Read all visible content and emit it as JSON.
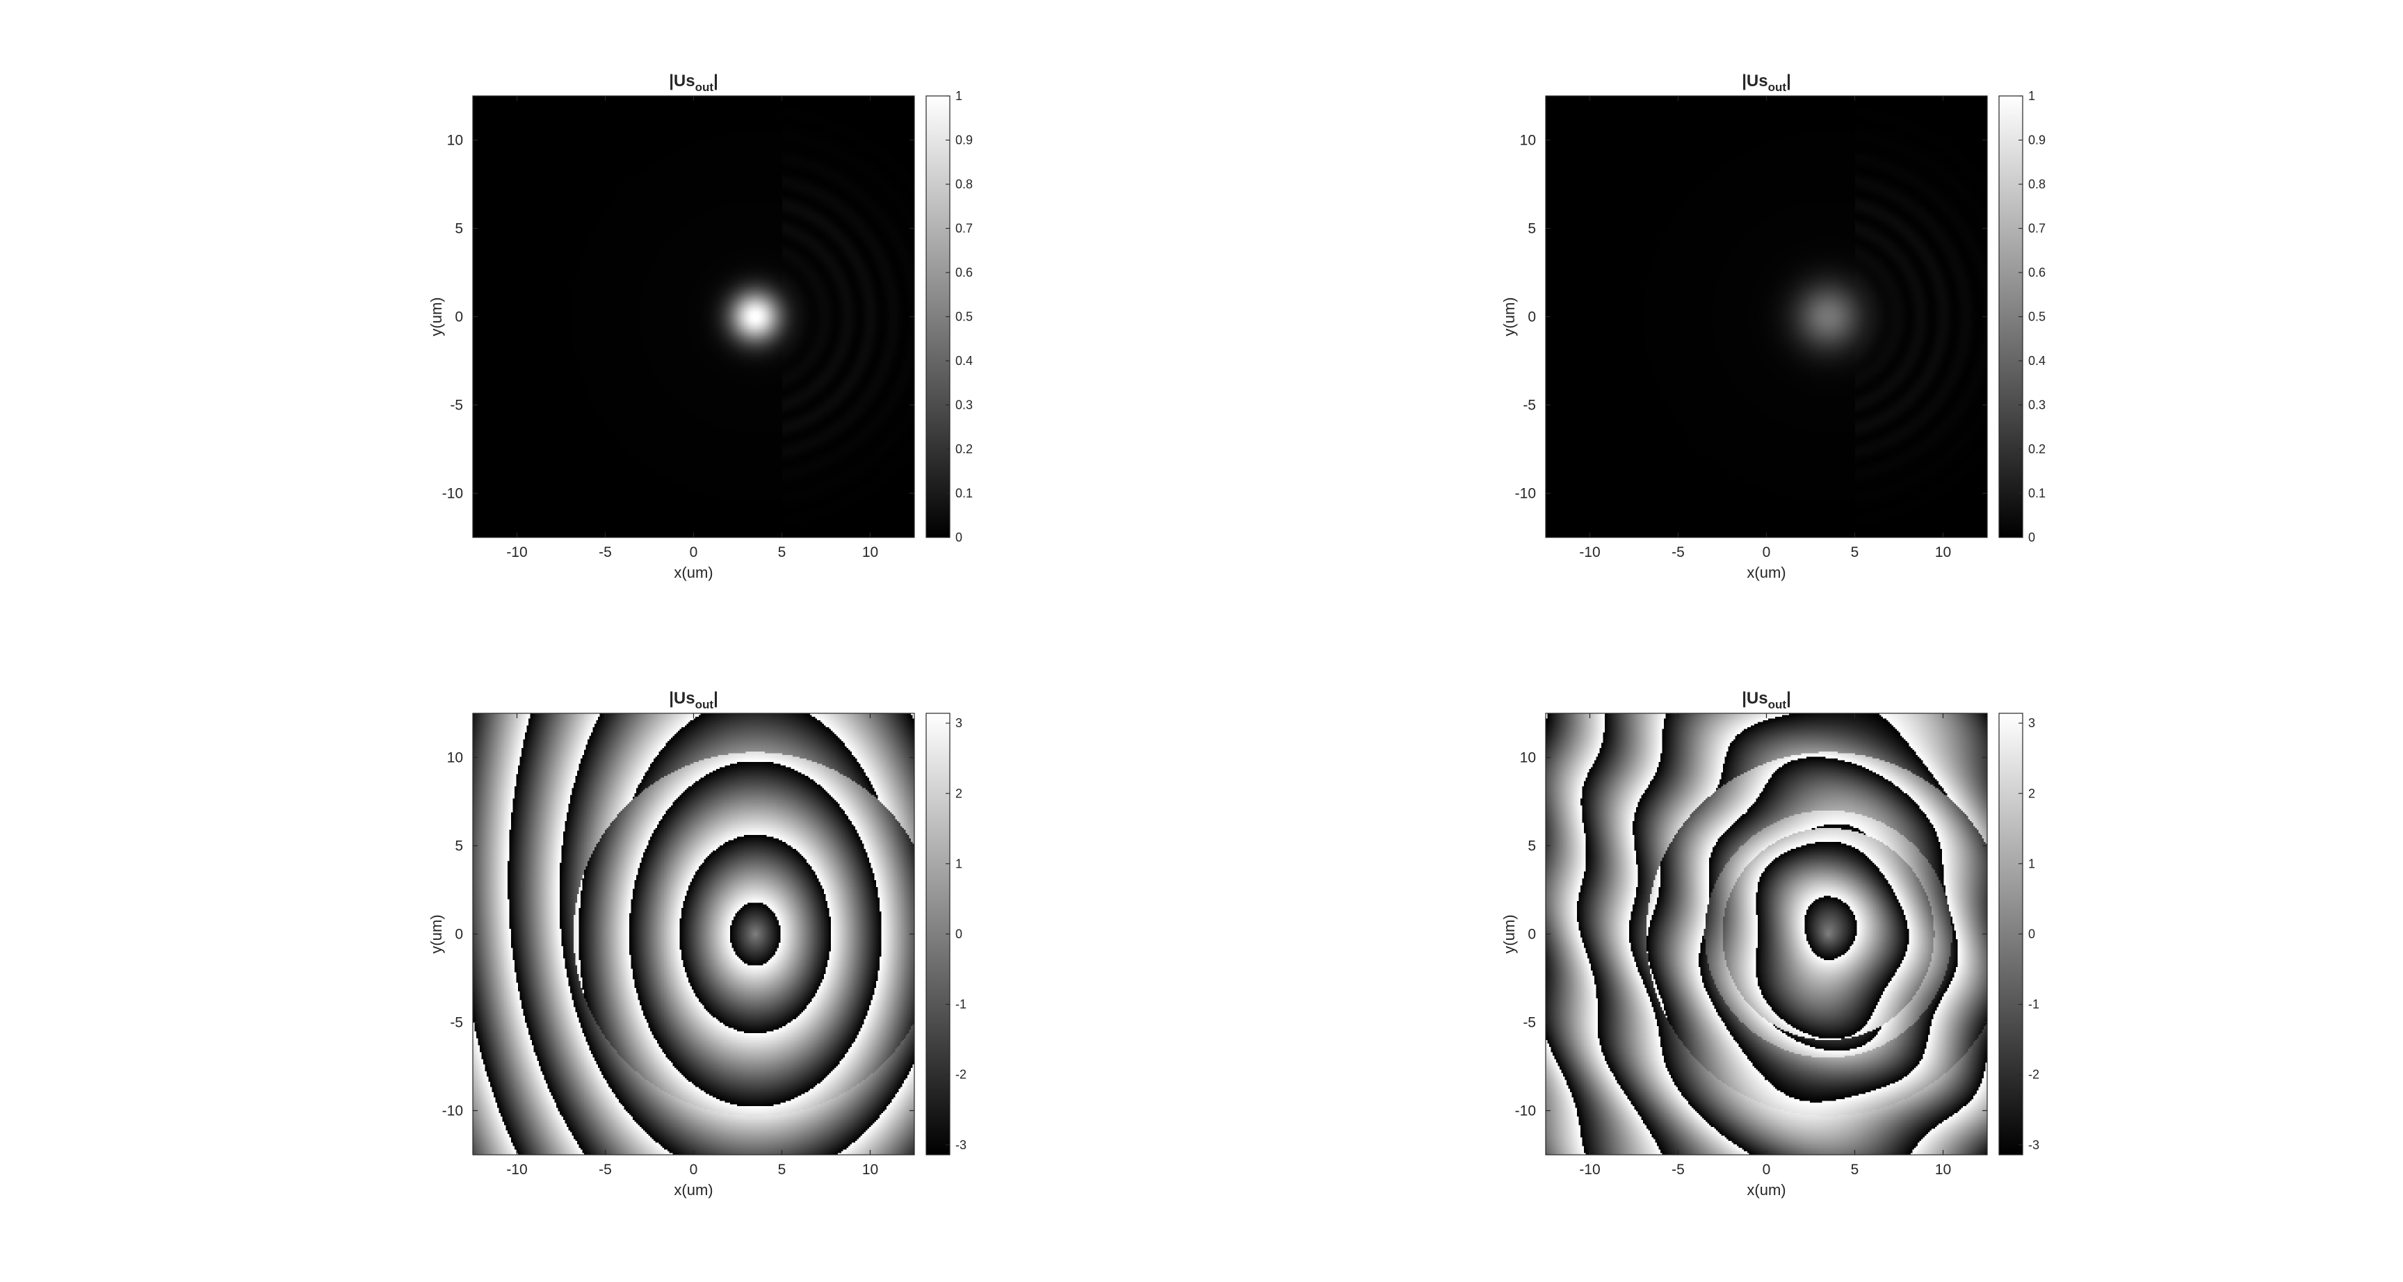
{
  "chart_data": [
    {
      "type": "heatmap",
      "panel": "top-left",
      "title": "|Us",
      "title_subscript": "out",
      "title_end": "|",
      "xlabel": "x(um)",
      "ylabel": "y(um)",
      "xlim": [
        -12.5,
        12.5
      ],
      "ylim": [
        -12.5,
        12.5
      ],
      "xticks": [
        -10,
        -5,
        0,
        5,
        10
      ],
      "yticks": [
        10,
        5,
        0,
        -5,
        -10
      ],
      "colorbar": {
        "range": [
          0,
          1
        ],
        "ticks": [
          "1",
          "0.9",
          "0.8",
          "0.7",
          "0.6",
          "0.5",
          "0.4",
          "0.3",
          "0.2",
          "0.1",
          "0"
        ]
      },
      "colormap": "gray",
      "spot": {
        "x": 3.5,
        "y": 0,
        "peak": 1.0,
        "sigma": 1.0
      },
      "grid": false
    },
    {
      "type": "heatmap",
      "panel": "top-right",
      "title": "|Us",
      "title_subscript": "out",
      "title_end": "|",
      "xlabel": "x(um)",
      "ylabel": "y(um)",
      "xlim": [
        -12.5,
        12.5
      ],
      "ylim": [
        -12.5,
        12.5
      ],
      "xticks": [
        -10,
        -5,
        0,
        5,
        10
      ],
      "yticks": [
        10,
        5,
        0,
        -5,
        -10
      ],
      "colorbar": {
        "range": [
          0,
          1
        ],
        "ticks": [
          "1",
          "0.9",
          "0.8",
          "0.7",
          "0.6",
          "0.5",
          "0.4",
          "0.3",
          "0.2",
          "0.1",
          "0"
        ]
      },
      "colormap": "gray",
      "spot": {
        "x": 3.5,
        "y": 0,
        "peak": 0.45,
        "sigma": 1.3
      },
      "grid": false
    },
    {
      "type": "heatmap",
      "panel": "bottom-left",
      "title": "|Us",
      "title_subscript": "out",
      "title_end": "|",
      "xlabel": "x(um)",
      "ylabel": "y(um)",
      "xlim": [
        -12.5,
        12.5
      ],
      "ylim": [
        -12.5,
        12.5
      ],
      "xticks": [
        -10,
        -5,
        0,
        5,
        10
      ],
      "yticks": [
        10,
        5,
        0,
        -5,
        -10
      ],
      "colorbar": {
        "range": [
          -3.14,
          3.14
        ],
        "ticks": [
          "3",
          "2",
          "1",
          "0",
          "-1",
          "-2",
          "-3"
        ]
      },
      "colormap": "gray",
      "phase_center": {
        "x": 3.5,
        "y": 0
      },
      "grid": false
    },
    {
      "type": "heatmap",
      "panel": "bottom-right",
      "title": "|Us",
      "title_subscript": "out",
      "title_end": "|",
      "xlabel": "x(um)",
      "ylabel": "y(um)",
      "xlim": [
        -12.5,
        12.5
      ],
      "ylim": [
        -12.5,
        12.5
      ],
      "xticks": [
        -10,
        -5,
        0,
        5,
        10
      ],
      "yticks": [
        10,
        5,
        0,
        -5,
        -10
      ],
      "colorbar": {
        "range": [
          -3.14,
          3.14
        ],
        "ticks": [
          "3",
          "2",
          "1",
          "0",
          "-1",
          "-2",
          "-3"
        ]
      },
      "colormap": "gray",
      "phase_center": {
        "x": 3.5,
        "y": 0
      },
      "grid": false
    }
  ]
}
